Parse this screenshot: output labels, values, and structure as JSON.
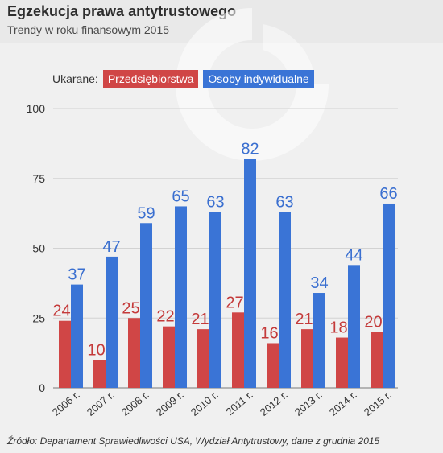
{
  "title": "Egzekucja prawa antytrustowego",
  "subtitle": "Trendy w roku finansowym 2015",
  "source": "Źródło: Departament Sprawiedliwości USA, Wydział Antytrustowy, dane z grudnia 2015",
  "legend": {
    "label": "Ukarane:",
    "items": [
      {
        "label": "Przedsiębiorstwa",
        "color": "#d04646"
      },
      {
        "label": "Osoby indywidualne",
        "color": "#3a74d6"
      }
    ]
  },
  "chart_data": {
    "type": "bar",
    "categories": [
      "2006 r.",
      "2007 r.",
      "2008 r.",
      "2009 r.",
      "2010 r.",
      "2011 r.",
      "2012 r.",
      "2013 r.",
      "2014 r.",
      "2015 r."
    ],
    "series": [
      {
        "name": "Przedsiębiorstwa",
        "values": [
          24,
          10,
          25,
          22,
          21,
          27,
          16,
          21,
          18,
          20
        ],
        "color": "#d04646",
        "label_color": "#c43a3a"
      },
      {
        "name": "Osoby indywidualne",
        "values": [
          37,
          47,
          59,
          65,
          63,
          82,
          63,
          34,
          44,
          66
        ],
        "color": "#3a74d6",
        "label_color": "#3a6fd0"
      }
    ],
    "yticks": [
      0,
      25,
      50,
      75,
      100
    ],
    "ylim": [
      0,
      100
    ],
    "grid": true
  }
}
